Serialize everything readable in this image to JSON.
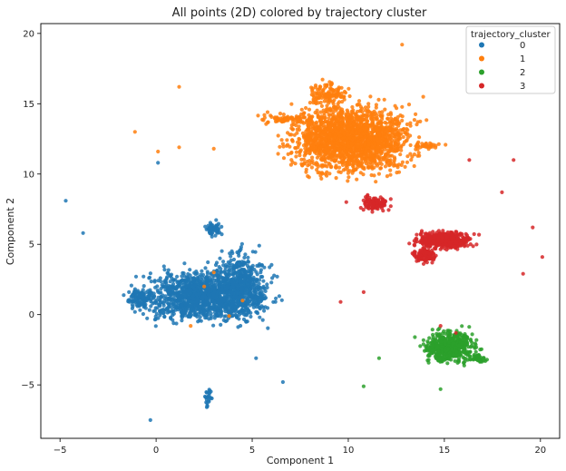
{
  "chart_data": {
    "type": "scatter",
    "title": "All points (2D) colored by trajectory cluster",
    "xlabel": "Component 1",
    "ylabel": "Component 2",
    "xlim": [
      -6.0,
      21.0
    ],
    "ylim": [
      -8.8,
      20.7
    ],
    "xticks": [
      -5,
      0,
      5,
      10,
      15,
      20
    ],
    "yticks": [
      -5,
      0,
      5,
      10,
      15,
      20
    ],
    "grid": false,
    "legend": {
      "title": "trajectory_cluster",
      "placement": "top-right"
    },
    "series": [
      {
        "name": "0",
        "color": "#1f77b4",
        "clusters": [
          {
            "cx": 2.5,
            "cy": 1.3,
            "rx": 2.6,
            "ry": 1.5,
            "n": 1300
          },
          {
            "cx": 4.4,
            "cy": 2.2,
            "rx": 1.1,
            "ry": 1.9,
            "n": 450
          },
          {
            "cx": -0.8,
            "cy": 1.2,
            "rx": 0.6,
            "ry": 0.6,
            "n": 120
          },
          {
            "cx": 3.0,
            "cy": 6.1,
            "rx": 0.4,
            "ry": 0.5,
            "n": 50
          },
          {
            "cx": 2.7,
            "cy": -5.9,
            "rx": 0.15,
            "ry": 0.6,
            "n": 25
          }
        ],
        "points": [
          [
            -4.7,
            8.1
          ],
          [
            -3.8,
            5.8
          ],
          [
            0.1,
            10.8
          ],
          [
            -0.3,
            -7.5
          ],
          [
            5.2,
            -3.1
          ],
          [
            6.6,
            -4.8
          ],
          [
            6.3,
            2.7
          ],
          [
            5.5,
            0.6
          ]
        ]
      },
      {
        "name": "1",
        "color": "#ff7f0e",
        "clusters": [
          {
            "cx": 10.2,
            "cy": 12.5,
            "rx": 2.6,
            "ry": 2.0,
            "n": 1900
          },
          {
            "cx": 9.0,
            "cy": 15.7,
            "rx": 0.9,
            "ry": 0.7,
            "n": 120
          },
          {
            "cx": 7.0,
            "cy": 13.9,
            "rx": 1.4,
            "ry": 0.3,
            "n": 80
          },
          {
            "cx": 14.2,
            "cy": 12.0,
            "rx": 0.7,
            "ry": 0.2,
            "n": 30
          }
        ],
        "points": [
          [
            1.2,
            16.2
          ],
          [
            -1.1,
            13.0
          ],
          [
            0.1,
            11.6
          ],
          [
            1.2,
            11.9
          ],
          [
            3.0,
            11.8
          ],
          [
            12.8,
            19.2
          ],
          [
            13.9,
            15.5
          ],
          [
            5.8,
            14.4
          ],
          [
            2.5,
            2.0
          ],
          [
            3.0,
            3.0
          ],
          [
            4.5,
            1.0
          ],
          [
            1.8,
            -0.8
          ],
          [
            3.8,
            -0.1
          ]
        ]
      },
      {
        "name": "2",
        "color": "#2ca02c",
        "clusters": [
          {
            "cx": 15.3,
            "cy": -2.3,
            "rx": 1.1,
            "ry": 0.9,
            "n": 550
          },
          {
            "cx": 16.8,
            "cy": -3.1,
            "rx": 0.4,
            "ry": 0.3,
            "n": 40
          }
        ],
        "points": [
          [
            11.6,
            -3.1
          ],
          [
            14.8,
            -5.3
          ],
          [
            10.8,
            -5.1
          ]
        ]
      },
      {
        "name": "3",
        "color": "#d62728",
        "clusters": [
          {
            "cx": 15.0,
            "cy": 5.3,
            "rx": 1.2,
            "ry": 0.5,
            "n": 420
          },
          {
            "cx": 14.0,
            "cy": 4.2,
            "rx": 0.5,
            "ry": 0.4,
            "n": 120
          },
          {
            "cx": 11.4,
            "cy": 7.9,
            "rx": 0.6,
            "ry": 0.4,
            "n": 110
          }
        ],
        "points": [
          [
            16.3,
            11.0
          ],
          [
            18.6,
            11.0
          ],
          [
            18.0,
            8.7
          ],
          [
            19.6,
            6.2
          ],
          [
            20.1,
            4.1
          ],
          [
            19.1,
            2.9
          ],
          [
            10.8,
            1.6
          ],
          [
            9.6,
            0.9
          ],
          [
            15.6,
            -1.3
          ],
          [
            14.8,
            -0.8
          ],
          [
            9.9,
            8.0
          ]
        ]
      }
    ]
  }
}
